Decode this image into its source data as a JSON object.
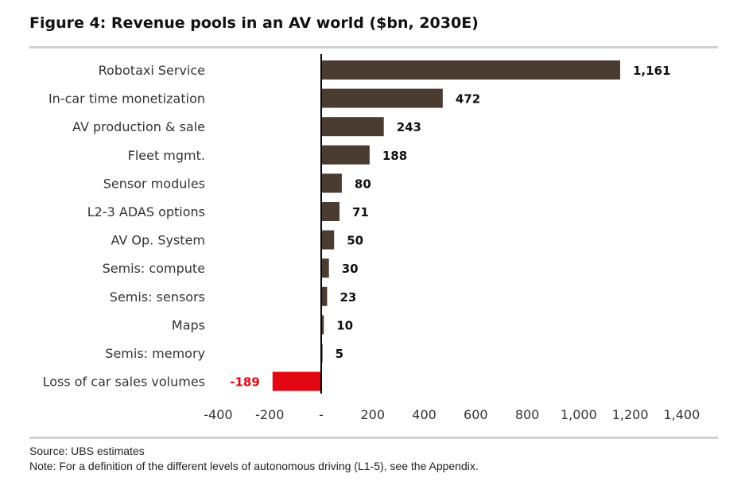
{
  "figure": {
    "title": "Figure 4: Revenue pools in an AV world ($bn, 2030E)",
    "source": "Source: UBS estimates",
    "note": "Note: For a definition of the different levels of autonomous driving (L1-5), see the Appendix."
  },
  "colors": {
    "positive_bar": "#4a3c31",
    "negative_bar": "#e30613",
    "axis": "#000000",
    "negative_label": "#e30613"
  },
  "chart_data": {
    "type": "bar",
    "orientation": "horizontal",
    "title": "Figure 4: Revenue pools in an AV world ($bn, 2030E)",
    "xlabel": "",
    "ylabel": "",
    "xlim": [
      -400,
      1400
    ],
    "grid": false,
    "legend": "none",
    "categories": [
      "Robotaxi Service",
      "In-car time monetization",
      "AV production & sale",
      "Fleet mgmt.",
      "Sensor modules",
      "L2-3 ADAS options",
      "AV Op. System",
      "Semis: compute",
      "Semis: sensors",
      "Maps",
      "Semis: memory",
      "Loss of car sales volumes"
    ],
    "values": [
      1161,
      472,
      243,
      188,
      80,
      71,
      50,
      30,
      23,
      10,
      5,
      -189
    ],
    "data_labels": [
      "1,161",
      "472",
      "243",
      "188",
      "80",
      "71",
      "50",
      "30",
      "23",
      "10",
      "5",
      "-189"
    ],
    "x_ticks": [
      -400,
      -200,
      0,
      200,
      400,
      600,
      800,
      1000,
      1200,
      1400
    ],
    "x_tick_labels": [
      "-400",
      "-200",
      "-",
      "200",
      "400",
      "600",
      "800",
      "1,000",
      "1,200",
      "1,400"
    ]
  }
}
